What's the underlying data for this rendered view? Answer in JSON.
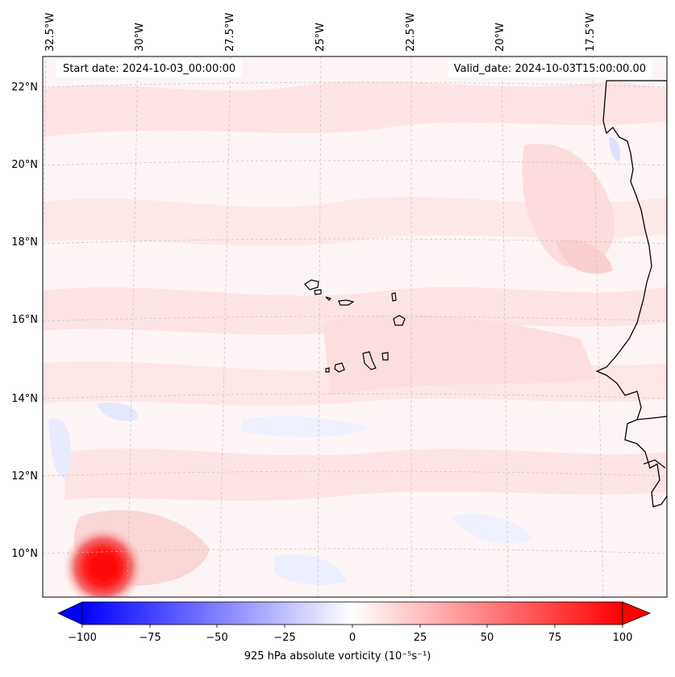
{
  "map": {
    "top_labels": [
      "32.5°W",
      "30°W",
      "27.5°W",
      "25°W",
      "22.5°W",
      "20°W",
      "17.5°W"
    ],
    "left_labels": [
      "22°N",
      "20°N",
      "18°N",
      "16°N",
      "14°N",
      "12°N",
      "10°N"
    ],
    "start_date": "Start date: 2024-10-03_00:00:00",
    "valid_date": "Valid_date: 2024-10-03T15:00:00.00",
    "field_colors": {
      "background": "#fdf5f5",
      "weak_positive": "#fde4e4",
      "moderate_positive": "#fbcfcf",
      "strong_positive": "#f08080",
      "max_positive": "#ff1010",
      "weak_negative": "#eef0fd",
      "moderate_negative": "#dde1fb",
      "coastline": "#000000",
      "gridline": "#bdbdbd"
    }
  },
  "colorbar": {
    "ticks": [
      "−100",
      "−75",
      "−50",
      "−25",
      "0",
      "25",
      "50",
      "75",
      "100"
    ],
    "title": "925 hPa absolute vorticity (10⁻⁵s⁻¹)",
    "min_color": "#0000ff",
    "mid_color": "#ffffff",
    "max_color": "#ff0000"
  }
}
